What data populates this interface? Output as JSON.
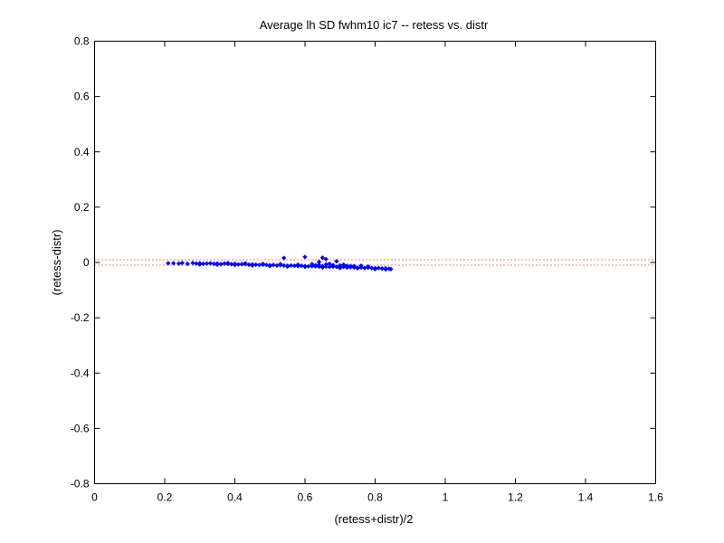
{
  "chart_data": {
    "type": "scatter",
    "title": "Average lh SD fwhm10 ic7 -- retess vs. distr",
    "xlabel": "(retess+distr)/2",
    "ylabel": "(retess-distr)",
    "xlim": [
      0,
      1.6
    ],
    "ylim": [
      -0.8,
      0.8
    ],
    "x_ticks": [
      0,
      0.2,
      0.4,
      0.6,
      0.8,
      1.0,
      1.2,
      1.4,
      1.6
    ],
    "x_tick_labels": [
      "0",
      "0.2",
      "0.4",
      "0.6",
      "0.8",
      "1",
      "1.2",
      "1.4",
      "1.6"
    ],
    "y_ticks": [
      -0.8,
      -0.6,
      -0.4,
      -0.2,
      0,
      0.2,
      0.4,
      0.6,
      0.8
    ],
    "y_tick_labels": [
      "-0.8",
      "-0.6",
      "-0.4",
      "-0.2",
      "0",
      "0.2",
      "0.4",
      "0.6",
      "0.8"
    ],
    "grid": false,
    "legend": "none",
    "colors": {
      "points": "#0000ff",
      "reference_lines": "#ff0000",
      "axes": "#000000"
    },
    "reference_lines": [
      0.01,
      -0.01
    ],
    "series": [
      {
        "marker": "diamond",
        "points": [
          [
            0.21,
            -0.003
          ],
          [
            0.225,
            -0.003
          ],
          [
            0.24,
            -0.004
          ],
          [
            0.25,
            -0.002
          ],
          [
            0.265,
            -0.005
          ],
          [
            0.28,
            -0.002
          ],
          [
            0.29,
            -0.004
          ],
          [
            0.3,
            -0.003
          ],
          [
            0.31,
            -0.005
          ],
          [
            0.32,
            -0.004
          ],
          [
            0.33,
            -0.003
          ],
          [
            0.34,
            -0.005
          ],
          [
            0.35,
            -0.004
          ],
          [
            0.36,
            -0.006
          ],
          [
            0.37,
            -0.004
          ],
          [
            0.38,
            -0.005
          ],
          [
            0.39,
            -0.006
          ],
          [
            0.4,
            -0.005
          ],
          [
            0.41,
            -0.007
          ],
          [
            0.42,
            -0.006
          ],
          [
            0.43,
            -0.006
          ],
          [
            0.44,
            -0.008
          ],
          [
            0.45,
            -0.007
          ],
          [
            0.46,
            -0.008
          ],
          [
            0.47,
            -0.009
          ],
          [
            0.48,
            -0.008
          ],
          [
            0.49,
            -0.009
          ],
          [
            0.5,
            -0.01
          ],
          [
            0.51,
            -0.009
          ],
          [
            0.52,
            -0.011
          ],
          [
            0.53,
            -0.01
          ],
          [
            0.54,
            -0.011
          ],
          [
            0.55,
            -0.012
          ],
          [
            0.56,
            -0.011
          ],
          [
            0.57,
            -0.012
          ],
          [
            0.58,
            -0.013
          ],
          [
            0.59,
            -0.012
          ],
          [
            0.6,
            -0.013
          ],
          [
            0.61,
            -0.014
          ],
          [
            0.62,
            -0.013
          ],
          [
            0.63,
            -0.014
          ],
          [
            0.64,
            -0.015
          ],
          [
            0.65,
            -0.014
          ],
          [
            0.66,
            -0.015
          ],
          [
            0.67,
            -0.016
          ],
          [
            0.68,
            -0.015
          ],
          [
            0.69,
            -0.016
          ],
          [
            0.7,
            -0.017
          ],
          [
            0.71,
            -0.016
          ],
          [
            0.72,
            -0.018
          ],
          [
            0.73,
            -0.017
          ],
          [
            0.74,
            -0.018
          ],
          [
            0.75,
            -0.019
          ],
          [
            0.76,
            -0.018
          ],
          [
            0.77,
            -0.02
          ],
          [
            0.78,
            -0.019
          ],
          [
            0.79,
            -0.02
          ],
          [
            0.8,
            -0.021
          ],
          [
            0.81,
            -0.02
          ],
          [
            0.82,
            -0.022
          ],
          [
            0.83,
            -0.021
          ],
          [
            0.84,
            -0.023
          ],
          [
            0.845,
            -0.024
          ],
          [
            0.3,
            -0.007
          ],
          [
            0.35,
            -0.008
          ],
          [
            0.4,
            -0.009
          ],
          [
            0.45,
            -0.011
          ],
          [
            0.5,
            -0.013
          ],
          [
            0.55,
            -0.015
          ],
          [
            0.6,
            -0.016
          ],
          [
            0.65,
            -0.018
          ],
          [
            0.7,
            -0.02
          ],
          [
            0.75,
            -0.021
          ],
          [
            0.8,
            -0.024
          ],
          [
            0.83,
            -0.025
          ],
          [
            0.38,
            -0.002
          ],
          [
            0.43,
            -0.003
          ],
          [
            0.48,
            -0.005
          ],
          [
            0.53,
            -0.006
          ],
          [
            0.58,
            -0.008
          ],
          [
            0.63,
            -0.01
          ],
          [
            0.68,
            -0.011
          ],
          [
            0.73,
            -0.013
          ],
          [
            0.78,
            -0.015
          ],
          [
            0.64,
            -0.008
          ],
          [
            0.66,
            -0.007
          ],
          [
            0.68,
            -0.01
          ],
          [
            0.7,
            -0.011
          ],
          [
            0.72,
            -0.012
          ],
          [
            0.74,
            -0.013
          ],
          [
            0.62,
            -0.006
          ],
          [
            0.67,
            -0.005
          ],
          [
            0.71,
            -0.008
          ],
          [
            0.76,
            -0.012
          ],
          [
            0.54,
            0.016
          ],
          [
            0.6,
            0.02
          ],
          [
            0.65,
            0.017
          ],
          [
            0.66,
            0.012
          ],
          [
            0.69,
            0.004
          ],
          [
            0.64,
            0.002
          ]
        ]
      }
    ]
  }
}
